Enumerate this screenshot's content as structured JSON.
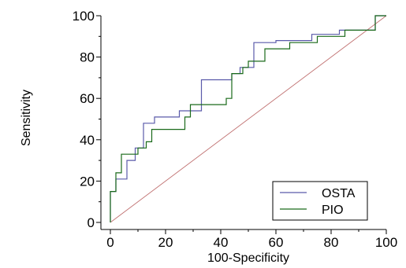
{
  "chart_data": {
    "type": "line",
    "title": "",
    "xlabel": "100-Specificity",
    "ylabel": "Sensitivity",
    "xlim": [
      0,
      100
    ],
    "ylim": [
      0,
      100
    ],
    "xticks": [
      0,
      20,
      40,
      60,
      80,
      100
    ],
    "yticks": [
      0,
      20,
      40,
      60,
      80,
      100
    ],
    "grid": false,
    "legend_position": "bottom-right",
    "reference_line": {
      "x": [
        0,
        100
      ],
      "y": [
        0,
        100
      ],
      "color": "#c07070"
    },
    "series": [
      {
        "name": "OSTA",
        "color": "#5a5aaa",
        "x": [
          0,
          0,
          2,
          2,
          6,
          6,
          9,
          9,
          12,
          12,
          16,
          16,
          25,
          25,
          33,
          33,
          44,
          44,
          47,
          47,
          52,
          52,
          60,
          60,
          73,
          73,
          83,
          83,
          96,
          96,
          100
        ],
        "y": [
          0,
          15,
          15,
          21,
          21,
          30,
          30,
          36,
          36,
          48,
          48,
          51,
          51,
          54,
          54,
          69,
          69,
          72,
          72,
          75,
          75,
          87,
          87,
          88,
          88,
          91,
          91,
          93,
          93,
          100,
          100
        ]
      },
      {
        "name": "PIO",
        "color": "#1a6a1a",
        "x": [
          0,
          0,
          2,
          2,
          4,
          4,
          10,
          10,
          13,
          13,
          15,
          15,
          27,
          27,
          29,
          29,
          42,
          42,
          44,
          44,
          48,
          48,
          50,
          50,
          56,
          56,
          65,
          65,
          75,
          75,
          85,
          85,
          96,
          96,
          100
        ],
        "y": [
          0,
          15,
          15,
          24,
          24,
          33,
          33,
          36,
          36,
          39,
          39,
          45,
          45,
          51,
          51,
          57,
          57,
          60,
          60,
          72,
          72,
          75,
          75,
          78,
          78,
          84,
          84,
          87,
          87,
          90,
          90,
          93,
          93,
          100,
          100
        ]
      }
    ]
  }
}
